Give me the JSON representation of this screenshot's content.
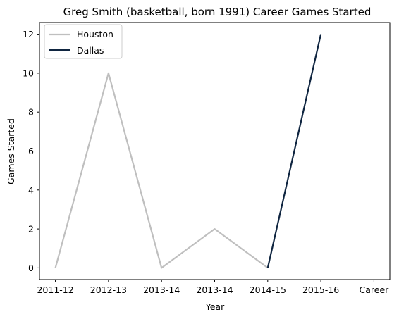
{
  "chart_data": {
    "type": "line",
    "title": "Greg Smith (basketball, born 1991) Career Games Started",
    "xlabel": "Year",
    "ylabel": "Games Started",
    "categories": [
      "2011-12",
      "2012-13",
      "2013-14",
      "2013-14",
      "2014-15",
      "2015-16",
      "Career"
    ],
    "ylim": [
      -0.6,
      12.6
    ],
    "yticks": [
      0,
      2,
      4,
      6,
      8,
      10,
      12
    ],
    "grid": false,
    "legend": "top-left",
    "series": [
      {
        "name": "Houston",
        "color": "#bfbfbf",
        "points": [
          [
            0,
            0
          ],
          [
            1,
            10
          ],
          [
            2,
            0
          ],
          [
            3,
            2
          ],
          [
            4,
            0
          ]
        ]
      },
      {
        "name": "Dallas",
        "color": "#0f2540",
        "points": [
          [
            4,
            0
          ],
          [
            5,
            12
          ]
        ]
      }
    ]
  }
}
